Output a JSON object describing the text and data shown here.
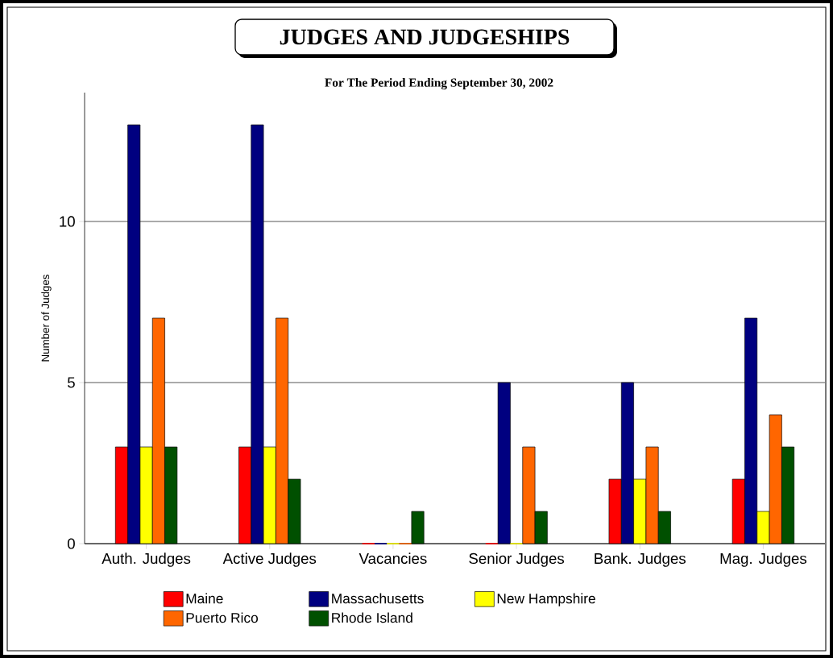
{
  "chart_data": {
    "type": "bar",
    "title": "JUDGES AND JUDGESHIPS",
    "subtitle": "For The Period Ending September 30, 2002",
    "ylabel": "Number of Judges",
    "categories": [
      "Auth. Judges",
      "Active Judges",
      "Vacancies",
      "Senior Judges",
      "Bank. Judges",
      "Mag. Judges"
    ],
    "series": [
      {
        "name": "Maine",
        "color": "#ff0000",
        "values": [
          3,
          3,
          0,
          0,
          2,
          2
        ]
      },
      {
        "name": "Massachusetts",
        "color": "#000080",
        "values": [
          13,
          13,
          0,
          5,
          5,
          7
        ]
      },
      {
        "name": "New Hampshire",
        "color": "#ffff00",
        "values": [
          3,
          3,
          0,
          0,
          2,
          1
        ]
      },
      {
        "name": "Puerto Rico",
        "color": "#ff6600",
        "values": [
          7,
          7,
          0,
          3,
          3,
          4
        ]
      },
      {
        "name": "Rhode Island",
        "color": "#005000",
        "values": [
          3,
          2,
          1,
          1,
          1,
          3
        ]
      }
    ],
    "ylim": [
      0,
      14
    ],
    "yticks": [
      0,
      5,
      10
    ],
    "grid": "y",
    "legend": "bottom"
  }
}
